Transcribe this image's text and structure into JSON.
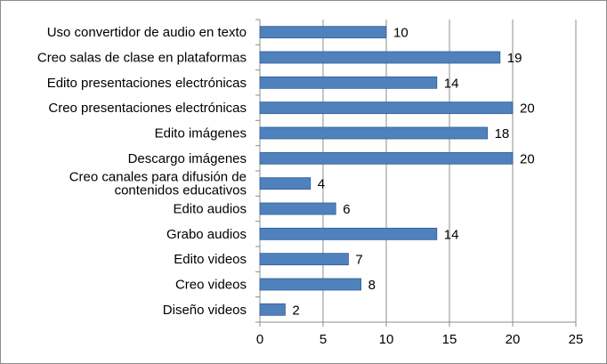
{
  "chart_data": {
    "type": "bar",
    "orientation": "horizontal",
    "title": "",
    "xlabel": "",
    "ylabel": "",
    "categories": [
      [
        "Uso convertidor de audio en texto"
      ],
      [
        "Creo salas de clase en plataformas"
      ],
      [
        "Edito presentaciones electrónicas"
      ],
      [
        "Creo presentaciones electrónicas"
      ],
      [
        "Edito imágenes"
      ],
      [
        "Descargo imágenes"
      ],
      [
        "Creo canales para difusión de",
        "contenidos educativos"
      ],
      [
        "Edito audios"
      ],
      [
        "Grabo audios"
      ],
      [
        "Edito videos"
      ],
      [
        "Creo videos"
      ],
      [
        "Diseño videos"
      ]
    ],
    "values": [
      10,
      19,
      14,
      20,
      18,
      20,
      4,
      6,
      14,
      7,
      8,
      2
    ],
    "xlim": [
      0,
      25
    ],
    "xticks": [
      0,
      5,
      10,
      15,
      20,
      25
    ],
    "grid": "vertical",
    "legend": "none",
    "bar_color": "#4f81bd",
    "bar_edge_color": "#2f5e94",
    "grid_color": "#8c8c8c"
  }
}
